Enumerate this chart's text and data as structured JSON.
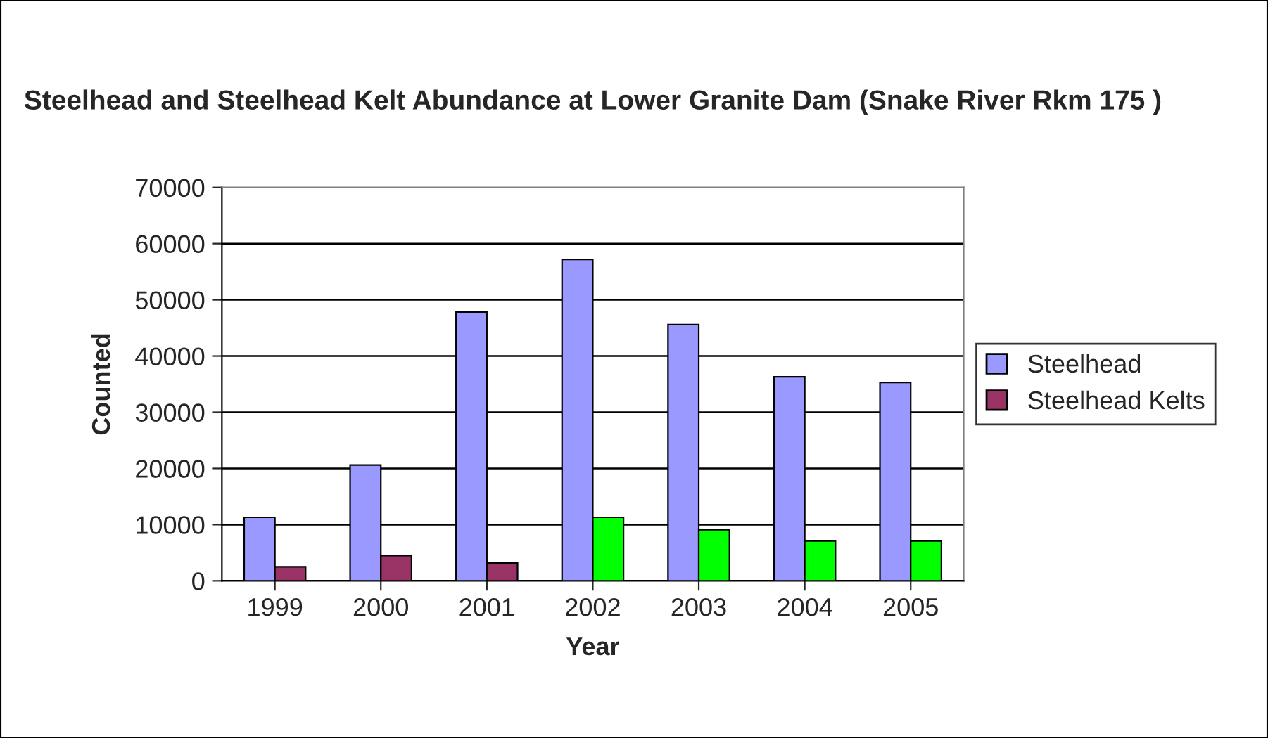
{
  "chart_data": {
    "type": "bar",
    "title": "Steelhead and Steelhead Kelt Abundance at Lower Granite Dam (Snake River Rkm 175 )",
    "xlabel": "Year",
    "ylabel": "Counted",
    "categories": [
      "1999",
      "2000",
      "2001",
      "2002",
      "2003",
      "2004",
      "2005"
    ],
    "series": [
      {
        "name": "Steelhead",
        "color": "#9999ff",
        "values": [
          11300,
          20600,
          47800,
          57200,
          45600,
          36300,
          35300
        ]
      },
      {
        "name": "Steelhead Kelts",
        "color": "#993366",
        "colors": [
          "#993366",
          "#993366",
          "#993366",
          "#00ff00",
          "#00ff00",
          "#00ff00",
          "#00ff00"
        ],
        "values": [
          2500,
          4500,
          3200,
          11300,
          9100,
          7100,
          7100
        ]
      }
    ],
    "ylim": [
      0,
      70000
    ],
    "yticks": [
      0,
      10000,
      20000,
      30000,
      40000,
      50000,
      60000,
      70000
    ],
    "grid": "y",
    "legend": "right"
  }
}
